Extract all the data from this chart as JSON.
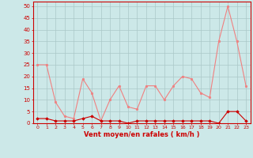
{
  "x": [
    0,
    1,
    2,
    3,
    4,
    5,
    6,
    7,
    8,
    9,
    10,
    11,
    12,
    13,
    14,
    15,
    16,
    17,
    18,
    19,
    20,
    21,
    22,
    23
  ],
  "gusts": [
    25,
    25,
    9,
    3,
    2,
    19,
    13,
    1,
    10,
    16,
    7,
    6,
    16,
    16,
    10,
    16,
    20,
    19,
    13,
    11,
    35,
    50,
    35,
    16
  ],
  "wind_avg": [
    2,
    2,
    1,
    1,
    1,
    2,
    3,
    1,
    1,
    1,
    0,
    1,
    1,
    1,
    1,
    1,
    1,
    1,
    1,
    1,
    0,
    5,
    5,
    1
  ],
  "gust_color": "#f08080",
  "avg_color": "#cc0000",
  "bg_color": "#cce8e8",
  "grid_color": "#aac8c8",
  "xlabel": "Vent moyen/en rafales ( km/h )",
  "ylabel_ticks": [
    0,
    5,
    10,
    15,
    20,
    25,
    30,
    35,
    40,
    45,
    50
  ],
  "ylim": [
    0,
    52
  ],
  "xlim": [
    -0.5,
    23.5
  ]
}
